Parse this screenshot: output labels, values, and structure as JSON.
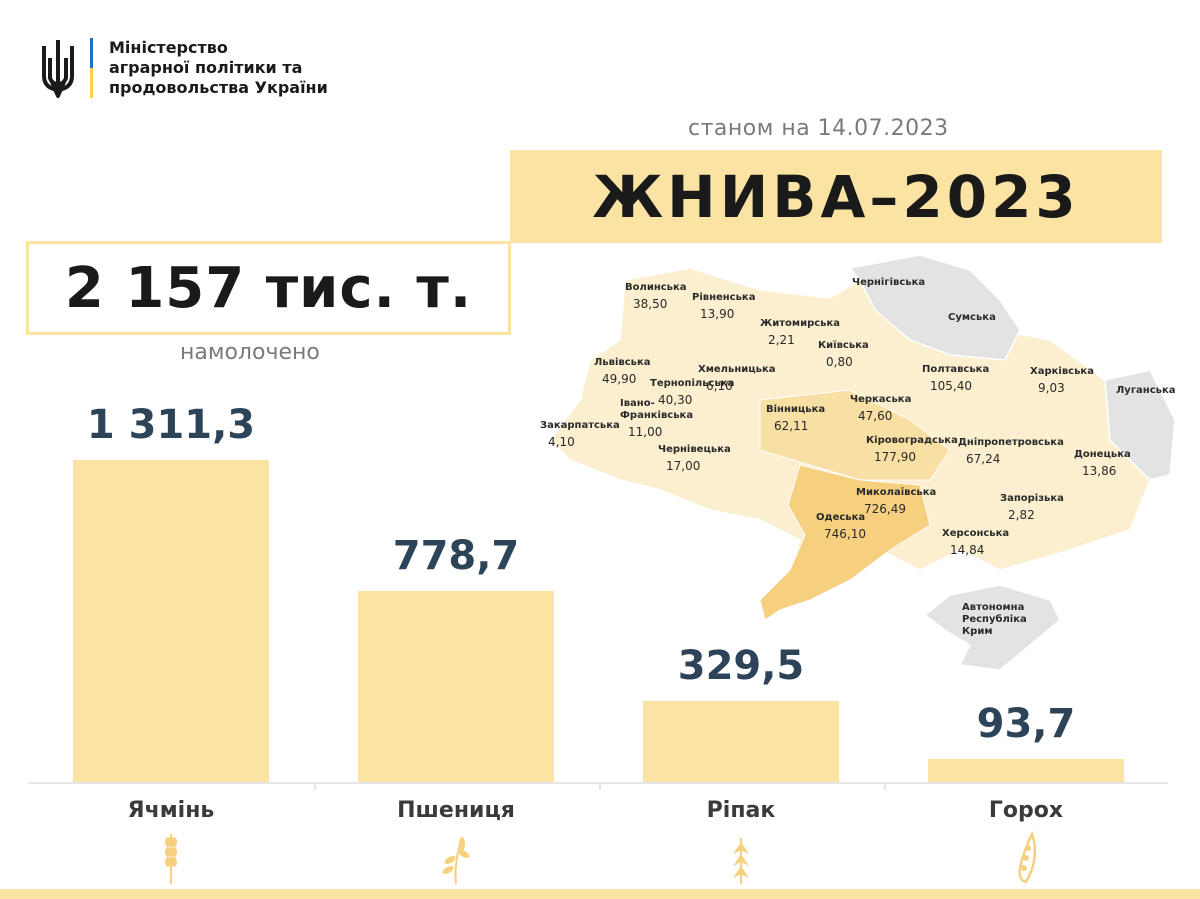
{
  "header": {
    "ministry": "Міністерство\nаграрної політики та\nпродовольства України",
    "date": "станом на 14.07.2023",
    "title": "ЖНИВА–2023"
  },
  "summary": {
    "total": "2 157 тис. т.",
    "caption": "намолочено"
  },
  "colors": {
    "accent": "#fbe3a3",
    "map_light": "#fbefd0",
    "map_mid": "#f8dfa3",
    "map_dark": "#f6cf7f",
    "map_occupied": "#e3e3e3",
    "value_text": "#2d4458"
  },
  "chart_data": {
    "type": "bar",
    "categories": [
      "Ячмінь",
      "Пшениця",
      "Ріпак",
      "Горох"
    ],
    "values": [
      1311.3,
      778.7,
      329.5,
      93.7
    ],
    "value_labels": [
      "1 311,3",
      "778,7",
      "329,5",
      "93,7"
    ],
    "icons": [
      "barley-icon",
      "wheat-icon",
      "rapeseed-icon",
      "pea-icon"
    ],
    "ylim": [
      0,
      1311.3
    ]
  },
  "map": {
    "regions": [
      {
        "name": "Волинська",
        "value": "38,50"
      },
      {
        "name": "Рівненська",
        "value": "13,90"
      },
      {
        "name": "Житомирська",
        "value": "2,21"
      },
      {
        "name": "Київська",
        "value": "0,80"
      },
      {
        "name": "Чернігівська",
        "value": ""
      },
      {
        "name": "Сумська",
        "value": ""
      },
      {
        "name": "Львівська",
        "value": "49,90"
      },
      {
        "name": "Хмельницька",
        "value": "6,10"
      },
      {
        "name": "Тернопільська",
        "value": "40,30"
      },
      {
        "name": "Полтавська",
        "value": "105,40"
      },
      {
        "name": "Харківська",
        "value": "9,03"
      },
      {
        "name": "Луганська",
        "value": ""
      },
      {
        "name": "Закарпатська",
        "value": "4,10"
      },
      {
        "name": "Івано-Франківська",
        "value": "11,00"
      },
      {
        "name": "Чернівецька",
        "value": "17,00"
      },
      {
        "name": "Вінницька",
        "value": "62,11"
      },
      {
        "name": "Черкаська",
        "value": "47,60"
      },
      {
        "name": "Кіровоградська",
        "value": "177,90"
      },
      {
        "name": "Дніпропетровська",
        "value": "67,24"
      },
      {
        "name": "Донецька",
        "value": "13,86"
      },
      {
        "name": "Миколаївська",
        "value": "726,49"
      },
      {
        "name": "Одеська",
        "value": "746,10"
      },
      {
        "name": "Запорізька",
        "value": "2,82"
      },
      {
        "name": "Херсонська",
        "value": "14,84"
      },
      {
        "name": "Автономна Республіка Крим",
        "value": ""
      }
    ]
  }
}
